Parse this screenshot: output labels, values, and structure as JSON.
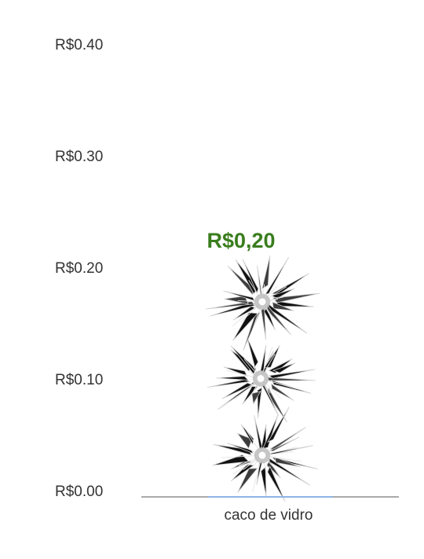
{
  "chart_data": {
    "type": "bar",
    "categories": [
      "caco de vidro"
    ],
    "values": [
      0.2
    ],
    "ylim": [
      0,
      0.4
    ],
    "y_ticks": [
      {
        "value": 0.4,
        "label": "R$0.40"
      },
      {
        "value": 0.3,
        "label": "R$0.30"
      },
      {
        "value": 0.2,
        "label": "R$0.20"
      },
      {
        "value": 0.1,
        "label": "R$0.10"
      },
      {
        "value": 0.0,
        "label": "R$0.00"
      }
    ],
    "data_labels": [
      "R$0,20"
    ],
    "bar_style": "stacked shattered-glass icons",
    "grid": false,
    "colors": {
      "data_label": "#3a7d1e",
      "axis_line": "#555555",
      "axis_highlight": "#8fb4e8",
      "glass_dark": "#111111",
      "glass_light": "#cfcfcf"
    }
  }
}
